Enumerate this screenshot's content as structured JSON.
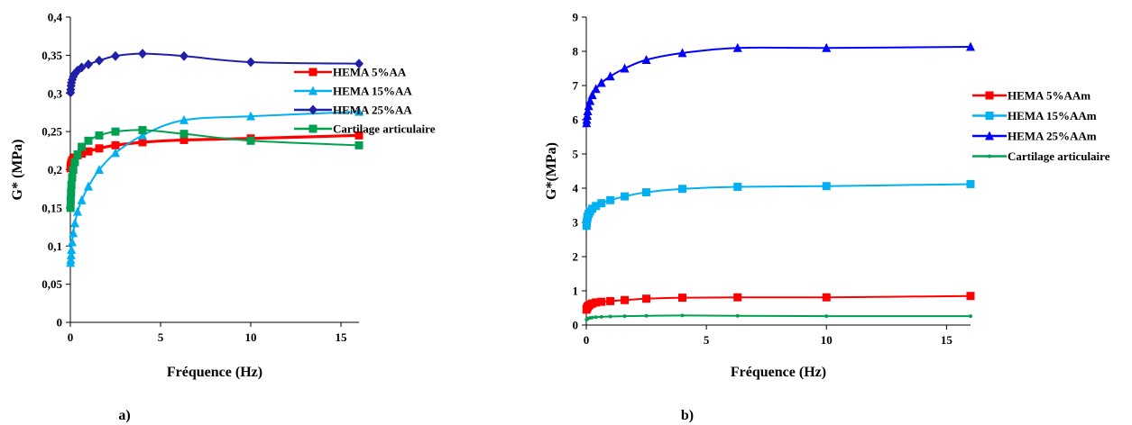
{
  "chart_data": [
    {
      "type": "line",
      "panel_label": "a)",
      "xlabel": "Fréquence (Hz)",
      "ylabel": "G* (MPa)",
      "xlim": [
        0,
        16
      ],
      "ylim": [
        0,
        0.4
      ],
      "x_ticks": [
        0,
        5,
        10,
        15
      ],
      "x_tick_labels": [
        "0",
        "5",
        "10",
        "15"
      ],
      "y_ticks": [
        0,
        0.05,
        0.1,
        0.15,
        0.2,
        0.25,
        0.3,
        0.35,
        0.4
      ],
      "y_tick_labels": [
        "0",
        "0,05",
        "0,1",
        "0,15",
        "0,2",
        "0,25",
        "0,3",
        "0,35",
        "0,4"
      ],
      "grid": false,
      "legend_position": "right",
      "series": [
        {
          "name": "HEMA 5%AA",
          "color": "#ff0000",
          "marker": "square",
          "x": [
            0.01,
            0.02,
            0.04,
            0.06,
            0.1,
            0.16,
            0.25,
            0.4,
            0.63,
            1.0,
            1.6,
            2.5,
            4.0,
            6.3,
            10.0,
            16.0
          ],
          "y": [
            0.202,
            0.205,
            0.207,
            0.209,
            0.212,
            0.214,
            0.216,
            0.219,
            0.221,
            0.224,
            0.228,
            0.232,
            0.236,
            0.239,
            0.241,
            0.245
          ]
        },
        {
          "name": "HEMA 15%AA",
          "color": "#00b0f0",
          "marker": "triangle",
          "x": [
            0.01,
            0.02,
            0.04,
            0.06,
            0.1,
            0.16,
            0.25,
            0.4,
            0.63,
            1.0,
            1.6,
            2.5,
            4.0,
            6.3,
            10.0,
            16.0
          ],
          "y": [
            0.078,
            0.082,
            0.088,
            0.095,
            0.105,
            0.117,
            0.13,
            0.145,
            0.16,
            0.178,
            0.2,
            0.222,
            0.245,
            0.265,
            0.27,
            0.276
          ]
        },
        {
          "name": "HEMA 25%AA",
          "color": "#1f1fa8",
          "marker": "diamond",
          "x": [
            0.01,
            0.02,
            0.04,
            0.06,
            0.1,
            0.16,
            0.25,
            0.4,
            0.63,
            1.0,
            1.6,
            2.5,
            4.0,
            6.3,
            10.0,
            16.0
          ],
          "y": [
            0.301,
            0.305,
            0.31,
            0.314,
            0.318,
            0.322,
            0.326,
            0.33,
            0.334,
            0.338,
            0.343,
            0.349,
            0.352,
            0.349,
            0.341,
            0.339
          ]
        },
        {
          "name": "Cartilage articulaire",
          "color": "#00a050",
          "marker": "square",
          "x": [
            0.01,
            0.02,
            0.04,
            0.06,
            0.1,
            0.16,
            0.25,
            0.4,
            0.63,
            1.0,
            1.6,
            2.5,
            4.0,
            6.3,
            10.0,
            16.0
          ],
          "y": [
            0.15,
            0.16,
            0.17,
            0.18,
            0.19,
            0.2,
            0.21,
            0.22,
            0.23,
            0.238,
            0.245,
            0.25,
            0.252,
            0.247,
            0.238,
            0.232
          ]
        }
      ]
    },
    {
      "type": "line",
      "panel_label": "b)",
      "xlabel": "Fréquence (Hz)",
      "ylabel": "G*(MPa)",
      "xlim": [
        0,
        16
      ],
      "ylim": [
        0,
        9
      ],
      "x_ticks": [
        0,
        5,
        10,
        15
      ],
      "x_tick_labels": [
        "0",
        "5",
        "10",
        "15"
      ],
      "y_ticks": [
        0,
        1,
        2,
        3,
        4,
        5,
        6,
        7,
        8,
        9
      ],
      "y_tick_labels": [
        "0",
        "1",
        "2",
        "3",
        "4",
        "5",
        "6",
        "7",
        "8",
        "9"
      ],
      "grid": false,
      "legend_position": "right",
      "series": [
        {
          "name": "HEMA 5%AAm",
          "color": "#ff0000",
          "marker": "square",
          "x": [
            0.01,
            0.02,
            0.04,
            0.06,
            0.1,
            0.16,
            0.25,
            0.4,
            0.63,
            1.0,
            1.6,
            2.5,
            4.0,
            6.3,
            10.0,
            16.0
          ],
          "y": [
            0.45,
            0.48,
            0.51,
            0.54,
            0.57,
            0.6,
            0.63,
            0.66,
            0.68,
            0.7,
            0.73,
            0.77,
            0.8,
            0.81,
            0.81,
            0.85
          ]
        },
        {
          "name": "HEMA 15%AAm",
          "color": "#00b0f0",
          "marker": "square",
          "x": [
            0.01,
            0.02,
            0.04,
            0.06,
            0.1,
            0.16,
            0.25,
            0.4,
            0.63,
            1.0,
            1.6,
            2.5,
            4.0,
            6.3,
            10.0,
            16.0
          ],
          "y": [
            2.9,
            3.0,
            3.1,
            3.18,
            3.25,
            3.32,
            3.4,
            3.48,
            3.56,
            3.65,
            3.76,
            3.88,
            3.98,
            4.04,
            4.06,
            4.12
          ]
        },
        {
          "name": "HEMA 25%AAm",
          "color": "#0000ff",
          "marker": "triangle",
          "x": [
            0.01,
            0.02,
            0.04,
            0.06,
            0.1,
            0.16,
            0.25,
            0.4,
            0.63,
            1.0,
            1.6,
            2.5,
            4.0,
            6.3,
            10.0,
            16.0
          ],
          "y": [
            5.9,
            6.0,
            6.12,
            6.25,
            6.4,
            6.55,
            6.72,
            6.9,
            7.08,
            7.27,
            7.5,
            7.75,
            7.95,
            8.1,
            8.1,
            8.13
          ]
        },
        {
          "name": "Cartilage articulaire",
          "color": "#00a050",
          "marker": "circle",
          "x": [
            0.01,
            0.02,
            0.04,
            0.06,
            0.1,
            0.16,
            0.25,
            0.4,
            0.63,
            1.0,
            1.6,
            2.5,
            4.0,
            6.3,
            10.0,
            16.0
          ],
          "y": [
            0.16,
            0.17,
            0.18,
            0.19,
            0.2,
            0.21,
            0.22,
            0.23,
            0.24,
            0.25,
            0.26,
            0.27,
            0.28,
            0.27,
            0.26,
            0.26
          ]
        }
      ]
    }
  ]
}
